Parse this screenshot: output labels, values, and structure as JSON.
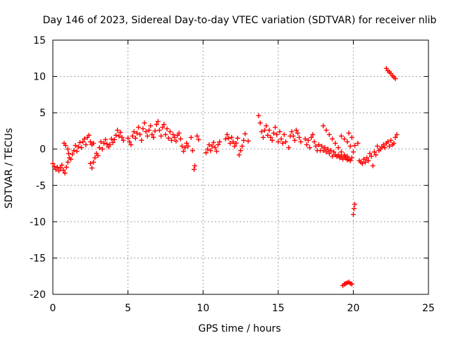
{
  "chart_data": {
    "type": "scatter",
    "title": "Day 146 of 2023, Sidereal Day-to-day VTEC variation (SDTVAR) for receiver nlib",
    "xlabel": "GPS time / hours",
    "ylabel": "SDTVAR / TECUs",
    "xlim": [
      0,
      25
    ],
    "ylim": [
      -20,
      15
    ],
    "xticks": [
      0,
      5,
      10,
      15,
      20,
      25
    ],
    "yticks": [
      -20,
      -15,
      -10,
      -5,
      0,
      5,
      10,
      15
    ],
    "grid": true,
    "marker": "+",
    "color": "#ff0000",
    "series": [
      {
        "name": "SDTVAR",
        "points": [
          [
            0.0,
            -2.0
          ],
          [
            0.1,
            -2.4
          ],
          [
            0.2,
            -2.8
          ],
          [
            0.3,
            -2.5
          ],
          [
            0.4,
            -3.0
          ],
          [
            0.5,
            -2.6
          ],
          [
            0.6,
            -2.2
          ],
          [
            0.7,
            -2.9
          ],
          [
            0.8,
            -3.3
          ],
          [
            0.9,
            -2.5
          ],
          [
            1.0,
            -1.8
          ],
          [
            1.1,
            -1.2
          ],
          [
            0.75,
            0.8
          ],
          [
            0.85,
            0.5
          ],
          [
            1.0,
            0.0
          ],
          [
            1.05,
            -0.6
          ],
          [
            1.2,
            -1.4
          ],
          [
            1.3,
            -0.7
          ],
          [
            1.4,
            -0.2
          ],
          [
            1.5,
            0.5
          ],
          [
            1.6,
            -0.3
          ],
          [
            1.7,
            0.3
          ],
          [
            1.8,
            0.9
          ],
          [
            1.9,
            0.2
          ],
          [
            2.0,
            1.0
          ],
          [
            2.1,
            1.4
          ],
          [
            2.2,
            0.6
          ],
          [
            2.3,
            1.6
          ],
          [
            2.4,
            1.9
          ],
          [
            2.5,
            1.0
          ],
          [
            2.6,
            0.6
          ],
          [
            2.7,
            0.8
          ],
          [
            2.5,
            -2.0
          ],
          [
            2.6,
            -2.6
          ],
          [
            2.7,
            -1.8
          ],
          [
            2.8,
            -1.2
          ],
          [
            2.9,
            -0.6
          ],
          [
            3.0,
            -0.9
          ],
          [
            3.1,
            0.2
          ],
          [
            3.2,
            1.0
          ],
          [
            3.3,
            0.0
          ],
          [
            3.4,
            0.8
          ],
          [
            3.5,
            1.3
          ],
          [
            3.6,
            0.7
          ],
          [
            3.7,
            0.3
          ],
          [
            3.8,
            0.6
          ],
          [
            3.9,
            1.4
          ],
          [
            4.0,
            0.9
          ],
          [
            4.1,
            1.3
          ],
          [
            4.2,
            1.9
          ],
          [
            4.3,
            2.6
          ],
          [
            4.4,
            1.8
          ],
          [
            4.5,
            2.3
          ],
          [
            4.6,
            1.6
          ],
          [
            4.7,
            1.2
          ],
          [
            5.0,
            1.5
          ],
          [
            5.1,
            1.0
          ],
          [
            5.2,
            0.6
          ],
          [
            5.3,
            1.8
          ],
          [
            5.4,
            2.4
          ],
          [
            5.5,
            1.5
          ],
          [
            5.6,
            2.2
          ],
          [
            5.7,
            3.0
          ],
          [
            5.8,
            2.0
          ],
          [
            5.9,
            1.2
          ],
          [
            6.0,
            2.8
          ],
          [
            6.1,
            3.6
          ],
          [
            6.2,
            2.4
          ],
          [
            6.3,
            1.8
          ],
          [
            6.4,
            2.6
          ],
          [
            6.5,
            3.2
          ],
          [
            6.6,
            2.0
          ],
          [
            6.7,
            1.6
          ],
          [
            6.8,
            2.5
          ],
          [
            6.9,
            3.4
          ],
          [
            7.0,
            3.8
          ],
          [
            7.1,
            2.6
          ],
          [
            7.2,
            1.8
          ],
          [
            7.3,
            3.0
          ],
          [
            7.4,
            3.4
          ],
          [
            7.5,
            2.0
          ],
          [
            7.6,
            2.8
          ],
          [
            7.7,
            1.5
          ],
          [
            7.8,
            2.4
          ],
          [
            7.9,
            1.2
          ],
          [
            8.0,
            2.0
          ],
          [
            8.1,
            1.6
          ],
          [
            8.2,
            1.1
          ],
          [
            8.3,
            1.9
          ],
          [
            8.4,
            2.2
          ],
          [
            8.5,
            1.4
          ],
          [
            8.6,
            0.4
          ],
          [
            8.7,
            -0.3
          ],
          [
            8.8,
            0.2
          ],
          [
            8.9,
            0.8
          ],
          [
            9.0,
            0.4
          ],
          [
            9.2,
            1.6
          ],
          [
            9.3,
            -0.2
          ],
          [
            9.4,
            -2.8
          ],
          [
            9.45,
            -2.3
          ],
          [
            9.6,
            1.8
          ],
          [
            9.7,
            1.3
          ],
          [
            10.2,
            -0.5
          ],
          [
            10.3,
            0.0
          ],
          [
            10.4,
            0.6
          ],
          [
            10.5,
            -0.2
          ],
          [
            10.6,
            0.4
          ],
          [
            10.7,
            0.9
          ],
          [
            10.8,
            0.2
          ],
          [
            10.9,
            -0.3
          ],
          [
            11.0,
            0.6
          ],
          [
            11.1,
            1.0
          ],
          [
            11.5,
            1.4
          ],
          [
            11.6,
            2.0
          ],
          [
            11.7,
            1.5
          ],
          [
            11.8,
            0.8
          ],
          [
            11.9,
            1.6
          ],
          [
            12.0,
            1.0
          ],
          [
            12.1,
            0.4
          ],
          [
            12.2,
            0.8
          ],
          [
            12.3,
            1.5
          ],
          [
            12.4,
            -0.8
          ],
          [
            12.5,
            -0.2
          ],
          [
            12.6,
            0.4
          ],
          [
            12.7,
            1.2
          ],
          [
            12.8,
            2.1
          ],
          [
            13.0,
            1.1
          ],
          [
            13.7,
            4.6
          ],
          [
            13.8,
            3.6
          ],
          [
            13.9,
            2.4
          ],
          [
            14.0,
            1.6
          ],
          [
            14.1,
            2.6
          ],
          [
            14.2,
            3.2
          ],
          [
            14.3,
            1.9
          ],
          [
            14.4,
            2.6
          ],
          [
            14.5,
            1.6
          ],
          [
            14.6,
            1.2
          ],
          [
            14.7,
            2.2
          ],
          [
            14.8,
            3.0
          ],
          [
            14.9,
            2.0
          ],
          [
            15.0,
            1.0
          ],
          [
            15.1,
            2.4
          ],
          [
            15.2,
            1.4
          ],
          [
            15.3,
            0.8
          ],
          [
            15.4,
            2.0
          ],
          [
            15.5,
            1.0
          ],
          [
            15.7,
            0.2
          ],
          [
            15.8,
            1.8
          ],
          [
            15.9,
            2.4
          ],
          [
            16.0,
            1.8
          ],
          [
            16.1,
            1.2
          ],
          [
            16.2,
            2.6
          ],
          [
            16.3,
            2.2
          ],
          [
            16.4,
            1.6
          ],
          [
            16.5,
            1.0
          ],
          [
            16.8,
            1.4
          ],
          [
            16.9,
            0.6
          ],
          [
            17.0,
            1.2
          ],
          [
            17.1,
            0.2
          ],
          [
            17.2,
            1.6
          ],
          [
            17.3,
            2.0
          ],
          [
            17.4,
            1.0
          ],
          [
            17.5,
            0.4
          ],
          [
            17.6,
            -0.2
          ],
          [
            17.7,
            0.6
          ],
          [
            17.8,
            -0.2
          ],
          [
            17.9,
            0.4
          ],
          [
            18.0,
            -0.2
          ],
          [
            18.1,
            0.2
          ],
          [
            18.2,
            -0.4
          ],
          [
            18.3,
            0.0
          ],
          [
            18.4,
            -0.6
          ],
          [
            18.5,
            -0.2
          ],
          [
            18.6,
            -1.0
          ],
          [
            18.7,
            -0.4
          ],
          [
            18.8,
            -0.8
          ],
          [
            18.9,
            -1.0
          ],
          [
            19.0,
            -0.8
          ],
          [
            19.1,
            -1.2
          ],
          [
            19.2,
            -1.0
          ],
          [
            19.3,
            -1.4
          ],
          [
            19.4,
            -0.8
          ],
          [
            19.5,
            -1.2
          ],
          [
            19.6,
            -1.0
          ],
          [
            19.7,
            -1.4
          ],
          [
            19.8,
            -1.6
          ],
          [
            19.9,
            -1.2
          ],
          [
            18.0,
            3.2
          ],
          [
            18.2,
            2.6
          ],
          [
            18.4,
            2.0
          ],
          [
            18.6,
            1.4
          ],
          [
            18.8,
            0.8
          ],
          [
            19.0,
            0.2
          ],
          [
            19.2,
            -0.4
          ],
          [
            19.4,
            -1.0
          ],
          [
            19.6,
            -1.5
          ],
          [
            19.2,
            1.8
          ],
          [
            19.4,
            1.4
          ],
          [
            19.6,
            1.0
          ],
          [
            19.8,
            0.4
          ],
          [
            20.0,
            -0.4
          ],
          [
            19.7,
            2.2
          ],
          [
            19.9,
            1.6
          ],
          [
            20.1,
            0.5
          ],
          [
            19.3,
            -18.8
          ],
          [
            19.4,
            -18.6
          ],
          [
            19.5,
            -18.5
          ],
          [
            19.6,
            -18.4
          ],
          [
            19.7,
            -18.3
          ],
          [
            19.8,
            -18.5
          ],
          [
            19.9,
            -18.6
          ],
          [
            20.0,
            -9.0
          ],
          [
            20.05,
            -8.2
          ],
          [
            20.1,
            -7.6
          ],
          [
            20.3,
            0.8
          ],
          [
            20.4,
            -1.6
          ],
          [
            20.5,
            -1.8
          ],
          [
            20.6,
            -2.0
          ],
          [
            20.7,
            -1.4
          ],
          [
            20.8,
            -1.8
          ],
          [
            20.9,
            -1.2
          ],
          [
            21.0,
            -1.6
          ],
          [
            21.1,
            -0.6
          ],
          [
            21.2,
            -1.0
          ],
          [
            21.3,
            -2.3
          ],
          [
            21.4,
            -0.4
          ],
          [
            21.5,
            -0.8
          ],
          [
            21.6,
            0.4
          ],
          [
            21.7,
            -0.2
          ],
          [
            21.8,
            0.0
          ],
          [
            21.9,
            0.3
          ],
          [
            22.0,
            0.6
          ],
          [
            22.1,
            0.2
          ],
          [
            22.2,
            0.8
          ],
          [
            22.3,
            1.0
          ],
          [
            22.4,
            0.4
          ],
          [
            22.5,
            1.2
          ],
          [
            22.6,
            0.6
          ],
          [
            22.7,
            0.8
          ],
          [
            22.8,
            1.6
          ],
          [
            22.9,
            2.0
          ],
          [
            22.2,
            11.1
          ],
          [
            22.3,
            10.8
          ],
          [
            22.4,
            10.6
          ],
          [
            22.5,
            10.4
          ],
          [
            22.6,
            10.1
          ],
          [
            22.7,
            9.9
          ],
          [
            22.8,
            9.7
          ]
        ]
      }
    ]
  }
}
